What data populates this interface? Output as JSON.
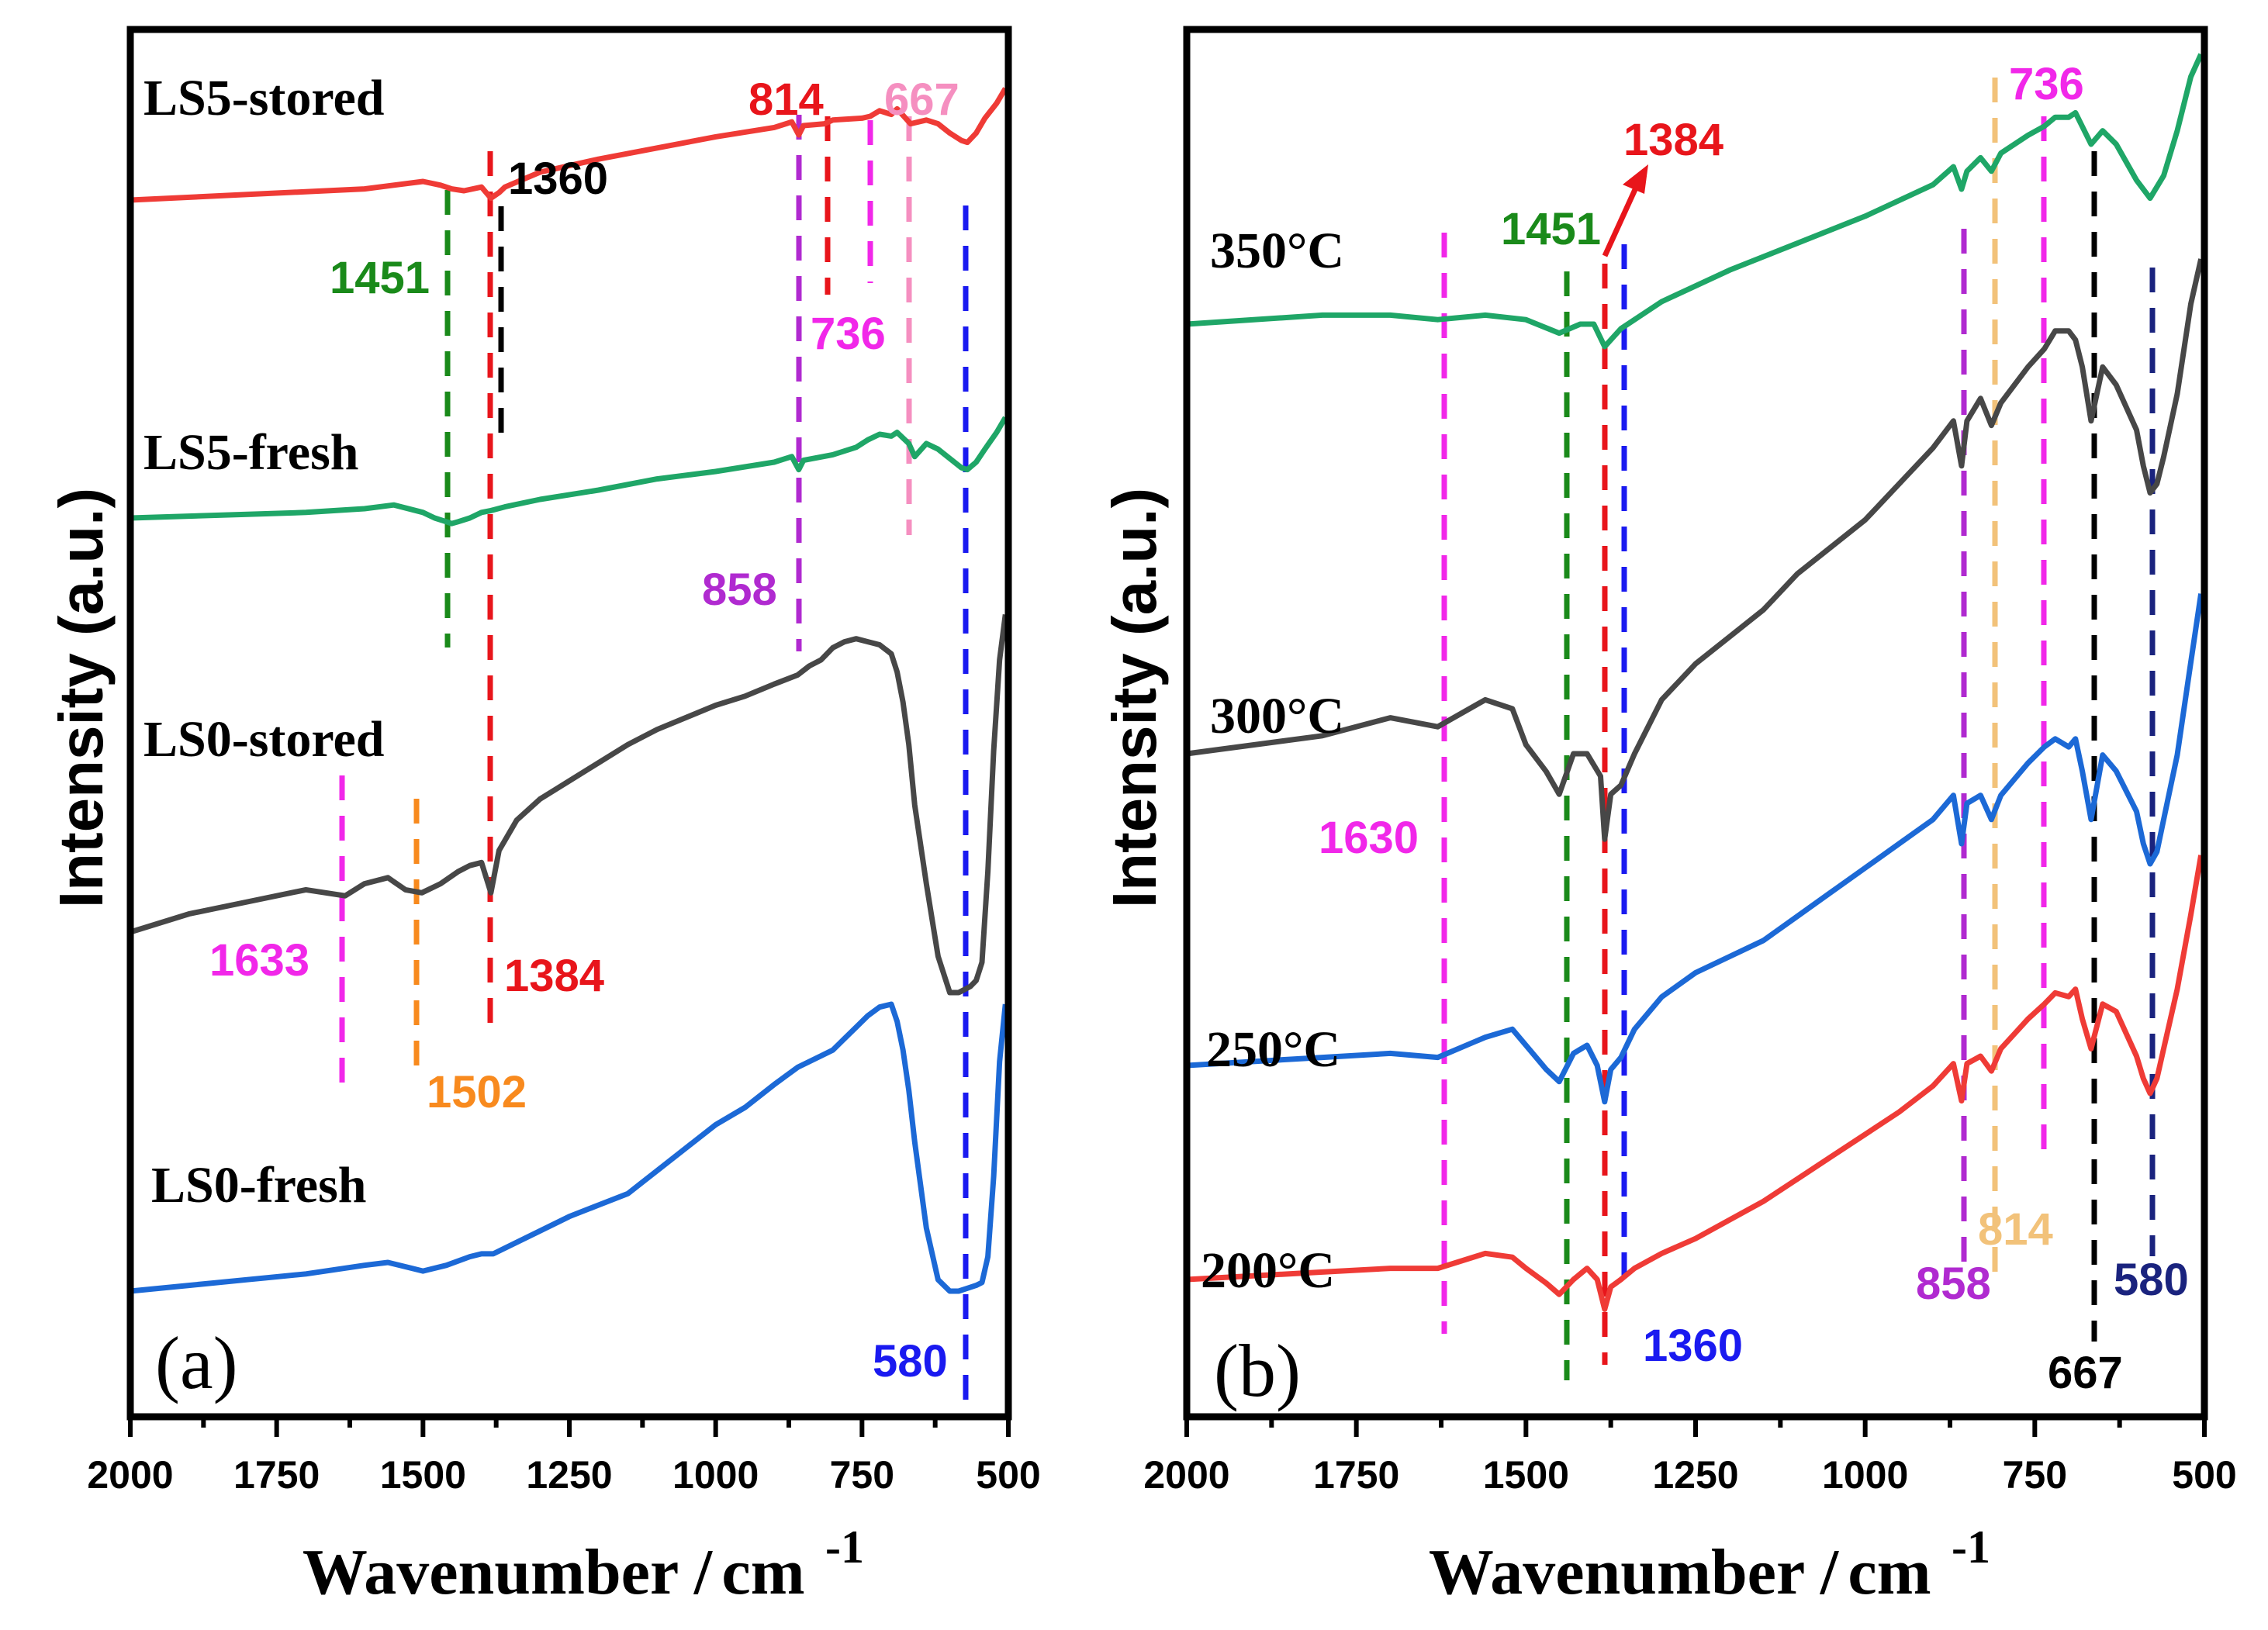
{
  "chart_data": [
    {
      "type": "line",
      "panel_label": "(a)",
      "xlabel": "Wavenumber /",
      "xlabel_unit": "cm",
      "xlabel_exp": "-1",
      "ylabel": "Intensity (a.u.)",
      "xlim": [
        2000,
        500
      ],
      "x_reversed": true,
      "xticks": [
        "2000",
        "1750",
        "1500",
        "1250",
        "1000",
        "750",
        "500"
      ],
      "series": [
        {
          "name": "LS5-stored",
          "color": "#ef3b36",
          "x": [
            2000,
            1800,
            1600,
            1500,
            1470,
            1451,
            1430,
            1400,
            1384,
            1370,
            1360,
            1300,
            1200,
            1100,
            1000,
            900,
            870,
            858,
            850,
            814,
            800,
            750,
            736,
            720,
            700,
            690,
            667,
            640,
            620,
            600,
            580,
            570,
            555,
            540,
            520,
            505
          ],
          "y": [
            0.3,
            0.33,
            0.36,
            0.4,
            0.38,
            0.36,
            0.35,
            0.37,
            0.31,
            0.34,
            0.37,
            0.45,
            0.52,
            0.58,
            0.64,
            0.69,
            0.72,
            0.65,
            0.7,
            0.71,
            0.73,
            0.74,
            0.75,
            0.78,
            0.76,
            0.79,
            0.71,
            0.73,
            0.71,
            0.66,
            0.62,
            0.61,
            0.66,
            0.74,
            0.82,
            0.9
          ]
        },
        {
          "name": "LS5-fresh",
          "color": "#1fa667",
          "x": [
            2000,
            1800,
            1700,
            1650,
            1600,
            1550,
            1500,
            1480,
            1460,
            1451,
            1440,
            1420,
            1400,
            1384,
            1360,
            1300,
            1200,
            1100,
            1000,
            900,
            870,
            858,
            850,
            800,
            760,
            740,
            720,
            700,
            690,
            670,
            660,
            640,
            620,
            600,
            580,
            570,
            555,
            540,
            520,
            505
          ],
          "y": [
            0.3,
            0.32,
            0.33,
            0.34,
            0.35,
            0.37,
            0.33,
            0.3,
            0.28,
            0.27,
            0.28,
            0.3,
            0.33,
            0.34,
            0.36,
            0.4,
            0.45,
            0.51,
            0.55,
            0.6,
            0.63,
            0.56,
            0.61,
            0.64,
            0.68,
            0.72,
            0.75,
            0.74,
            0.76,
            0.7,
            0.63,
            0.7,
            0.67,
            0.62,
            0.57,
            0.56,
            0.6,
            0.67,
            0.76,
            0.84
          ]
        },
        {
          "name": "LS0-stored",
          "color": "#474747",
          "x": [
            2000,
            1900,
            1800,
            1700,
            1633,
            1600,
            1560,
            1530,
            1502,
            1470,
            1440,
            1420,
            1400,
            1384,
            1370,
            1340,
            1300,
            1250,
            1200,
            1150,
            1100,
            1050,
            1000,
            950,
            900,
            860,
            840,
            820,
            800,
            780,
            760,
            740,
            720,
            700,
            690,
            680,
            670,
            660,
            640,
            620,
            600,
            585,
            575,
            565,
            555,
            545,
            535,
            525,
            515,
            505
          ],
          "y": [
            0.2,
            0.26,
            0.3,
            0.34,
            0.32,
            0.36,
            0.38,
            0.34,
            0.33,
            0.36,
            0.4,
            0.42,
            0.43,
            0.33,
            0.47,
            0.57,
            0.64,
            0.7,
            0.76,
            0.82,
            0.87,
            0.91,
            0.95,
            0.98,
            1.02,
            1.05,
            1.08,
            1.1,
            1.14,
            1.16,
            1.17,
            1.16,
            1.15,
            1.12,
            1.06,
            0.96,
            0.82,
            0.62,
            0.36,
            0.12,
            0.0,
            0.0,
            0.01,
            0.02,
            0.04,
            0.1,
            0.4,
            0.8,
            1.1,
            1.25
          ]
        },
        {
          "name": "LS0-fresh",
          "color": "#1c69d6",
          "x": [
            2000,
            1900,
            1800,
            1700,
            1600,
            1560,
            1520,
            1500,
            1460,
            1420,
            1400,
            1380,
            1360,
            1300,
            1250,
            1200,
            1150,
            1100,
            1050,
            1000,
            950,
            900,
            860,
            840,
            820,
            800,
            780,
            760,
            740,
            720,
            700,
            690,
            680,
            670,
            660,
            640,
            620,
            600,
            585,
            570,
            555,
            545,
            535,
            525,
            515,
            505
          ],
          "y": [
            0.0,
            0.02,
            0.04,
            0.06,
            0.09,
            0.1,
            0.08,
            0.07,
            0.09,
            0.12,
            0.13,
            0.13,
            0.15,
            0.21,
            0.26,
            0.3,
            0.34,
            0.42,
            0.5,
            0.58,
            0.64,
            0.72,
            0.78,
            0.8,
            0.82,
            0.84,
            0.88,
            0.92,
            0.96,
            0.99,
            1.0,
            0.94,
            0.84,
            0.7,
            0.52,
            0.22,
            0.04,
            0.0,
            0.0,
            0.01,
            0.02,
            0.03,
            0.12,
            0.4,
            0.8,
            1.0
          ]
        }
      ],
      "series_labels": [
        "LS5-stored",
        "LS5-fresh",
        "LS0-stored",
        "LS0-fresh"
      ],
      "annotations": [
        {
          "text": "814",
          "color": "#e8151b",
          "x": 814
        },
        {
          "text": "667",
          "color": "#f58fc0",
          "x": 667
        },
        {
          "text": "1360",
          "color": "#000000",
          "x": 1360
        },
        {
          "text": "1451",
          "color": "#1a8a1a",
          "x": 1451
        },
        {
          "text": "736",
          "color": "#f127e9",
          "x": 736
        },
        {
          "text": "858",
          "color": "#b02ad0",
          "x": 858
        },
        {
          "text": "1633",
          "color": "#f127e9",
          "x": 1633
        },
        {
          "text": "1384",
          "color": "#e8151b",
          "x": 1384
        },
        {
          "text": "1502",
          "color": "#f88a1e",
          "x": 1502
        },
        {
          "text": "580",
          "color": "#1a1af0",
          "x": 580
        }
      ]
    },
    {
      "type": "line",
      "panel_label": "(b)",
      "xlabel": "Wavenumber  /",
      "xlabel_unit": "cm",
      "xlabel_exp": "-1",
      "ylabel": "Intensity (a.u.)",
      "xlim": [
        2000,
        500
      ],
      "x_reversed": true,
      "xticks": [
        "2000",
        "1750",
        "1500",
        "1250",
        "1000",
        "750",
        "500"
      ],
      "series": [
        {
          "name": "350°C",
          "color": "#1fa667",
          "x": [
            2000,
            1800,
            1700,
            1630,
            1560,
            1500,
            1451,
            1420,
            1400,
            1384,
            1360,
            1300,
            1200,
            1100,
            1000,
            900,
            870,
            858,
            850,
            830,
            814,
            800,
            760,
            736,
            720,
            700,
            690,
            667,
            650,
            630,
            600,
            580,
            560,
            540,
            520,
            505
          ],
          "y": [
            0.4,
            0.42,
            0.42,
            0.41,
            0.42,
            0.41,
            0.38,
            0.4,
            0.4,
            0.35,
            0.39,
            0.45,
            0.52,
            0.58,
            0.64,
            0.71,
            0.75,
            0.7,
            0.74,
            0.77,
            0.74,
            0.78,
            0.82,
            0.84,
            0.86,
            0.86,
            0.87,
            0.8,
            0.83,
            0.8,
            0.72,
            0.68,
            0.73,
            0.83,
            0.95,
            1.0
          ]
        },
        {
          "name": "300°C",
          "color": "#474747",
          "x": [
            2000,
            1800,
            1700,
            1630,
            1560,
            1520,
            1500,
            1470,
            1451,
            1430,
            1410,
            1390,
            1384,
            1375,
            1360,
            1340,
            1300,
            1250,
            1200,
            1150,
            1100,
            1050,
            1000,
            950,
            900,
            870,
            858,
            850,
            830,
            814,
            800,
            780,
            760,
            736,
            720,
            700,
            690,
            680,
            667,
            650,
            630,
            600,
            590,
            580,
            570,
            560,
            540,
            520,
            505
          ],
          "y": [
            0.1,
            0.14,
            0.18,
            0.16,
            0.22,
            0.2,
            0.12,
            0.06,
            0.01,
            0.1,
            0.1,
            0.05,
            -0.09,
            0.01,
            0.03,
            0.1,
            0.22,
            0.3,
            0.36,
            0.42,
            0.5,
            0.56,
            0.62,
            0.7,
            0.78,
            0.84,
            0.74,
            0.84,
            0.89,
            0.83,
            0.88,
            0.92,
            0.96,
            1.0,
            1.04,
            1.04,
            1.02,
            0.96,
            0.84,
            0.96,
            0.92,
            0.82,
            0.74,
            0.68,
            0.7,
            0.76,
            0.9,
            1.1,
            1.2
          ]
        },
        {
          "name": "250°C",
          "color": "#1c69d6",
          "x": [
            2000,
            1800,
            1700,
            1630,
            1560,
            1520,
            1500,
            1470,
            1451,
            1430,
            1410,
            1395,
            1384,
            1375,
            1360,
            1340,
            1300,
            1250,
            1200,
            1150,
            1100,
            1050,
            1000,
            950,
            900,
            870,
            858,
            850,
            830,
            814,
            800,
            780,
            760,
            736,
            720,
            700,
            690,
            680,
            667,
            650,
            630,
            600,
            590,
            580,
            570,
            560,
            540,
            520,
            505
          ],
          "y": [
            0.05,
            0.07,
            0.08,
            0.07,
            0.12,
            0.14,
            0.1,
            0.04,
            0.01,
            0.08,
            0.1,
            0.05,
            -0.04,
            0.04,
            0.07,
            0.14,
            0.22,
            0.28,
            0.32,
            0.36,
            0.42,
            0.48,
            0.54,
            0.6,
            0.66,
            0.72,
            0.6,
            0.7,
            0.72,
            0.66,
            0.72,
            0.76,
            0.8,
            0.84,
            0.86,
            0.84,
            0.86,
            0.78,
            0.66,
            0.82,
            0.78,
            0.68,
            0.6,
            0.55,
            0.58,
            0.66,
            0.82,
            1.05,
            1.22
          ]
        },
        {
          "name": "200°C",
          "color": "#ef3b36",
          "x": [
            2000,
            1800,
            1700,
            1630,
            1560,
            1520,
            1500,
            1470,
            1451,
            1430,
            1410,
            1395,
            1384,
            1375,
            1360,
            1340,
            1300,
            1250,
            1200,
            1150,
            1100,
            1050,
            1000,
            950,
            900,
            870,
            858,
            850,
            830,
            814,
            800,
            780,
            760,
            736,
            720,
            700,
            690,
            680,
            667,
            650,
            630,
            600,
            590,
            580,
            570,
            560,
            540,
            520,
            505
          ],
          "y": [
            0.0,
            0.02,
            0.03,
            0.03,
            0.07,
            0.06,
            0.03,
            -0.01,
            -0.04,
            0.0,
            0.03,
            0.0,
            -0.08,
            -0.02,
            0.0,
            0.03,
            0.07,
            0.11,
            0.16,
            0.21,
            0.27,
            0.33,
            0.39,
            0.45,
            0.52,
            0.58,
            0.48,
            0.58,
            0.6,
            0.56,
            0.62,
            0.66,
            0.7,
            0.74,
            0.77,
            0.76,
            0.78,
            0.7,
            0.62,
            0.74,
            0.72,
            0.6,
            0.54,
            0.5,
            0.54,
            0.62,
            0.78,
            0.98,
            1.14
          ]
        }
      ],
      "series_labels": [
        "350°C",
        "300°C",
        "250°C",
        "200°C"
      ],
      "annotations": [
        {
          "text": "1384",
          "color": "#e8151b",
          "x": 1384
        },
        {
          "text": "736",
          "color": "#f127e9",
          "x": 736
        },
        {
          "text": "1451",
          "color": "#1a8a1a",
          "x": 1451
        },
        {
          "text": "1630",
          "color": "#f127e9",
          "x": 1630
        },
        {
          "text": "814",
          "color": "#f2c27a",
          "x": 814
        },
        {
          "text": "858",
          "color": "#b02ad0",
          "x": 858
        },
        {
          "text": "580",
          "color": "#1a237e",
          "x": 580
        },
        {
          "text": "1360",
          "color": "#1a1af0",
          "x": 1360
        },
        {
          "text": "667",
          "color": "#000000",
          "x": 667
        }
      ]
    }
  ]
}
